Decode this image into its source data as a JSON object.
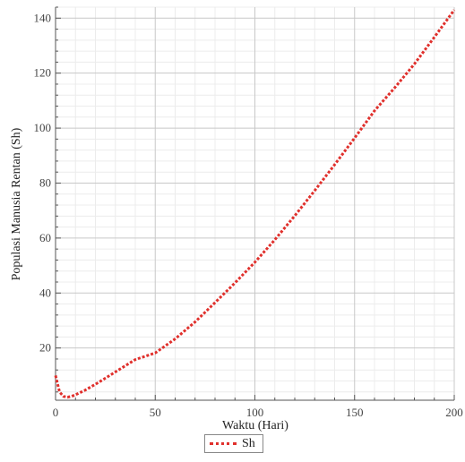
{
  "chart_data": {
    "type": "line",
    "title": "",
    "xlabel": "Waktu (Hari)",
    "ylabel": "Populasi Manusia Rentan (Sh)",
    "xlim": [
      0,
      200
    ],
    "ylim": [
      1,
      144
    ],
    "x_ticks": [
      0,
      50,
      100,
      150,
      200
    ],
    "y_ticks": [
      20,
      40,
      60,
      80,
      100,
      120,
      140
    ],
    "grid": true,
    "legend_position": "bottom-center",
    "series": [
      {
        "name": "Sh",
        "color": "#e0302c",
        "style": "dotted",
        "x": [
          0,
          1,
          2,
          4,
          6,
          8,
          10,
          15,
          20,
          25,
          30,
          40,
          50,
          60,
          70,
          80,
          90,
          100,
          110,
          120,
          130,
          140,
          150,
          160,
          170,
          180,
          190,
          200
        ],
        "y": [
          10,
          7,
          4,
          2.4,
          2.1,
          2.4,
          3,
          4.7,
          6.8,
          9,
          11.3,
          15.8,
          18.2,
          23.3,
          29.5,
          36.5,
          43.7,
          51.2,
          59.4,
          68.1,
          77.3,
          86.7,
          96.4,
          106.3,
          114.6,
          123.3,
          133.1,
          143
        ]
      }
    ]
  }
}
